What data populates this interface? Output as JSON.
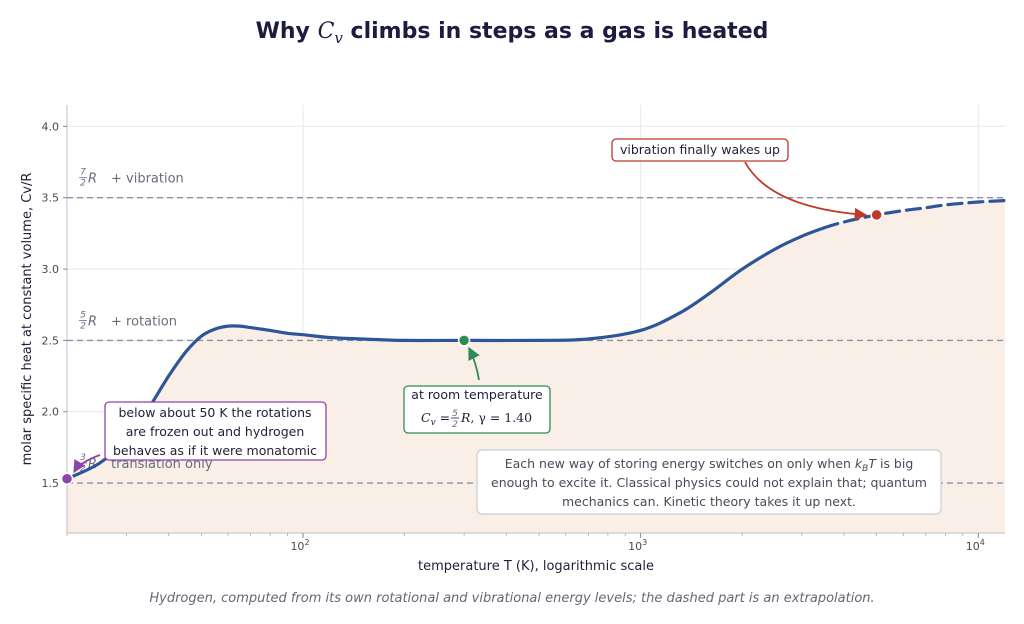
{
  "title": {
    "prefix": "Why ",
    "var": "C",
    "sub": "v",
    "suffix": " climbs in steps as a gas is heated"
  },
  "chart_data": {
    "type": "line",
    "xscale": "log",
    "xlim": [
      20,
      12000
    ],
    "ylim": [
      1.15,
      4.15
    ],
    "xlabel": "temperature  T  (K),  logarithmic scale",
    "ylabel": "molar specific heat at constant volume,  Cv/R",
    "yticks": [
      1.5,
      2.0,
      2.5,
      3.0,
      3.5,
      4.0
    ],
    "ytick_labels": [
      "1.5",
      "2.0",
      "2.5",
      "3.0",
      "3.5",
      "4.0"
    ],
    "xticks": [
      100,
      1000,
      10000
    ],
    "xtick_labels": [
      "10",
      "10",
      "10"
    ],
    "xtick_exps": [
      "2",
      "3",
      "4"
    ],
    "grid": true,
    "series": [
      {
        "x": [
          20,
          25,
          30,
          35,
          40,
          45,
          50,
          55,
          60,
          65,
          70,
          80,
          90,
          100,
          120,
          150,
          200,
          300,
          500,
          700,
          1000,
          1300,
          1600,
          2000,
          2500,
          3000,
          3500
        ],
        "y": [
          1.53,
          1.64,
          1.81,
          2.03,
          2.25,
          2.42,
          2.53,
          2.58,
          2.6,
          2.6,
          2.59,
          2.57,
          2.55,
          2.54,
          2.52,
          2.51,
          2.5,
          2.5,
          2.5,
          2.51,
          2.57,
          2.69,
          2.83,
          3.0,
          3.14,
          3.23,
          3.29
        ],
        "style": "solid",
        "color": "#2e5597"
      },
      {
        "x": [
          3500,
          4000,
          5000,
          6000,
          7000,
          8000,
          10000,
          12000
        ],
        "y": [
          3.29,
          3.33,
          3.38,
          3.41,
          3.43,
          3.45,
          3.47,
          3.48
        ],
        "style": "dashed",
        "color": "#2e5597"
      }
    ],
    "levels": [
      {
        "y": 1.5,
        "num": "3",
        "den": "2",
        "text": "translation only"
      },
      {
        "y": 2.5,
        "num": "5",
        "den": "2",
        "text": "+ rotation"
      },
      {
        "y": 3.5,
        "num": "7",
        "den": "2",
        "text": "+ vibration"
      }
    ],
    "points": [
      {
        "x": 20,
        "y": 1.53,
        "color": "#8e44ad",
        "label": "low-temperature start"
      },
      {
        "x": 300,
        "y": 2.5,
        "color": "#2e8b57",
        "label": "room temperature"
      },
      {
        "x": 5000,
        "y": 3.38,
        "color": "#c0392b",
        "label": "vibration onset"
      }
    ],
    "annotations": {
      "low": [
        "below about 50 K the rotations",
        "are frozen out and hydrogen",
        "behaves as if it were monatomic"
      ],
      "room_line1": "at room temperature",
      "room_line2": {
        "frac_num": "5",
        "frac_den": "2",
        "gamma": "γ = 1.40"
      },
      "vib": "vibration finally wakes up",
      "note": [
        "Each new way of storing energy switches on only when kBT is big",
        "enough to excite it. Classical physics could not explain that; quantum",
        "mechanics can. Kinetic theory takes it up next."
      ]
    }
  },
  "caption": "Hydrogen, computed from its own rotational and vibrational energy levels; the dashed part is an extrapolation.",
  "colors": {
    "curve": "#2e5597",
    "fill": "#f9efe6",
    "levels": "#8a8fa8",
    "low": "#8e44ad",
    "room": "#2e8b57",
    "vib": "#c0392b"
  }
}
